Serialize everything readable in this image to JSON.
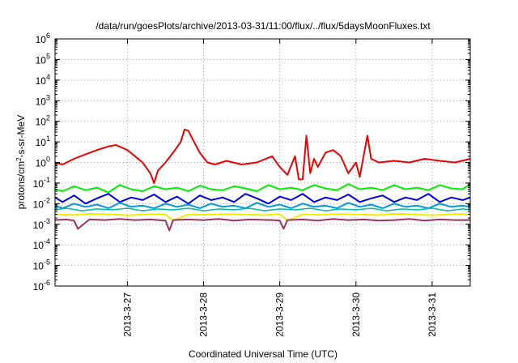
{
  "chart_data": {
    "type": "line",
    "title": "/data/run/goesPlots/archive/2013-03-31/11:00/flux/../flux/5daysMoonFluxes.txt",
    "xlabel": "Coordinated Universal Time (UTC)",
    "ylabel": "protons/cm²-s-sr-MeV",
    "ylabel_parts": {
      "pre": "protons/cm",
      "sup": "2",
      "post": "-s-sr-MeV"
    },
    "y_scale": "log",
    "ylim": [
      1e-06,
      1000000.0
    ],
    "y_ticks": [
      {
        "base": "10",
        "exp": "-6",
        "value": 1e-06
      },
      {
        "base": "10",
        "exp": "-5",
        "value": 1e-05
      },
      {
        "base": "10",
        "exp": "-4",
        "value": 0.0001
      },
      {
        "base": "10",
        "exp": "-3",
        "value": 0.001
      },
      {
        "base": "10",
        "exp": "-2",
        "value": 0.01
      },
      {
        "base": "10",
        "exp": "-1",
        "value": 0.1
      },
      {
        "base": "10",
        "exp": "0",
        "value": 1
      },
      {
        "base": "10",
        "exp": "1",
        "value": 10.0
      },
      {
        "base": "10",
        "exp": "2",
        "value": 100.0
      },
      {
        "base": "10",
        "exp": "3",
        "value": 1000.0
      },
      {
        "base": "10",
        "exp": "4",
        "value": 10000.0
      },
      {
        "base": "10",
        "exp": "5",
        "value": 100000.0
      },
      {
        "base": "10",
        "exp": "6",
        "value": 1000000.0
      }
    ],
    "x_range_days": [
      26.05,
      31.5
    ],
    "x_ticks": [
      {
        "label": "2013-3-27",
        "day": 27
      },
      {
        "label": "2013-3-28",
        "day": 28
      },
      {
        "label": "2013-3-29",
        "day": 29
      },
      {
        "label": "2013-3-30",
        "day": 30
      },
      {
        "label": "2013-3-31",
        "day": 31
      }
    ],
    "grid": true,
    "series": [
      {
        "color": "#00ee00",
        "width": 2,
        "x": [
          26.05,
          26.15,
          26.3,
          26.45,
          26.6,
          26.75,
          26.9,
          27.05,
          27.2,
          27.35,
          27.5,
          27.65,
          27.8,
          27.95,
          28.1,
          28.25,
          28.4,
          28.55,
          28.7,
          28.85,
          29.0,
          29.15,
          29.3,
          29.45,
          29.6,
          29.75,
          29.9,
          30.05,
          30.2,
          30.35,
          30.5,
          30.65,
          30.8,
          30.95,
          31.1,
          31.25,
          31.4,
          31.5
        ],
        "y": [
          0.05,
          0.04,
          0.07,
          0.045,
          0.06,
          0.035,
          0.08,
          0.05,
          0.04,
          0.07,
          0.05,
          0.06,
          0.04,
          0.075,
          0.05,
          0.045,
          0.07,
          0.055,
          0.04,
          0.08,
          0.05,
          0.06,
          0.045,
          0.08,
          0.055,
          0.045,
          0.09,
          0.05,
          0.06,
          0.045,
          0.08,
          0.05,
          0.06,
          0.045,
          0.08,
          0.055,
          0.05,
          0.09
        ]
      },
      {
        "color": "#0000ee",
        "width": 2,
        "x": [
          26.05,
          26.15,
          26.3,
          26.45,
          26.6,
          26.75,
          26.9,
          27.05,
          27.2,
          27.35,
          27.5,
          27.65,
          27.8,
          27.95,
          28.1,
          28.25,
          28.4,
          28.55,
          28.7,
          28.85,
          29.0,
          29.15,
          29.3,
          29.45,
          29.6,
          29.75,
          29.9,
          30.05,
          30.2,
          30.35,
          30.5,
          30.65,
          30.8,
          30.95,
          31.1,
          31.25,
          31.4,
          31.5
        ],
        "y": [
          0.02,
          0.012,
          0.025,
          0.01,
          0.018,
          0.03,
          0.012,
          0.02,
          0.015,
          0.028,
          0.012,
          0.022,
          0.01,
          0.025,
          0.015,
          0.02,
          0.012,
          0.03,
          0.018,
          0.01,
          0.022,
          0.015,
          0.03,
          0.012,
          0.02,
          0.015,
          0.028,
          0.012,
          0.018,
          0.025,
          0.012,
          0.02,
          0.015,
          0.03,
          0.012,
          0.02,
          0.015,
          0.02
        ]
      },
      {
        "color": "#0099dd",
        "width": 2,
        "x": [
          26.05,
          26.15,
          26.3,
          26.45,
          26.6,
          26.75,
          26.9,
          27.05,
          27.2,
          27.35,
          27.5,
          27.65,
          27.8,
          27.95,
          28.1,
          28.25,
          28.4,
          28.55,
          28.7,
          28.85,
          29.0,
          29.15,
          29.3,
          29.45,
          29.6,
          29.75,
          29.9,
          30.05,
          30.2,
          30.35,
          30.5,
          30.65,
          30.8,
          30.95,
          31.1,
          31.25,
          31.4,
          31.5
        ],
        "y": [
          0.008,
          0.006,
          0.01,
          0.007,
          0.009,
          0.006,
          0.011,
          0.007,
          0.008,
          0.006,
          0.01,
          0.007,
          0.009,
          0.006,
          0.01,
          0.007,
          0.008,
          0.006,
          0.011,
          0.007,
          0.009,
          0.006,
          0.01,
          0.007,
          0.008,
          0.006,
          0.011,
          0.007,
          0.009,
          0.006,
          0.01,
          0.007,
          0.008,
          0.006,
          0.01,
          0.007,
          0.008,
          0.007
        ]
      },
      {
        "color": "#00bbaa",
        "width": 1.5,
        "x": [
          26.05,
          26.2,
          26.4,
          26.6,
          26.8,
          27.0,
          27.2,
          27.4,
          27.6,
          27.8,
          28.0,
          28.2,
          28.4,
          28.6,
          28.8,
          29.0,
          29.2,
          29.4,
          29.6,
          29.8,
          30.0,
          30.2,
          30.4,
          30.6,
          30.8,
          31.0,
          31.2,
          31.4,
          31.5
        ],
        "y": [
          0.005,
          0.006,
          0.0045,
          0.0055,
          0.005,
          0.006,
          0.0045,
          0.0055,
          0.005,
          0.006,
          0.0045,
          0.0055,
          0.005,
          0.006,
          0.0045,
          0.0055,
          0.005,
          0.006,
          0.0045,
          0.0055,
          0.005,
          0.006,
          0.0045,
          0.0055,
          0.005,
          0.006,
          0.0045,
          0.0055,
          0.005
        ]
      },
      {
        "color": "#eeee00",
        "width": 2,
        "x": [
          26.05,
          26.3,
          26.5,
          26.8,
          27.0,
          27.3,
          27.5,
          27.6,
          27.8,
          28.0,
          28.3,
          28.5,
          28.8,
          29.0,
          29.1,
          29.3,
          29.5,
          29.8,
          30.0,
          30.3,
          30.5,
          30.8,
          31.0,
          31.3,
          31.5
        ],
        "y": [
          0.003,
          0.0028,
          0.0032,
          0.003,
          0.0027,
          0.0031,
          0.003,
          0.0015,
          0.003,
          0.0029,
          0.0031,
          0.003,
          0.0028,
          0.0031,
          0.0015,
          0.003,
          0.0029,
          0.0031,
          0.003,
          0.0028,
          0.0032,
          0.003,
          0.0027,
          0.0031,
          0.003
        ]
      },
      {
        "color": "#993366",
        "width": 2,
        "x": [
          26.05,
          26.2,
          26.3,
          26.35,
          26.5,
          26.7,
          26.9,
          27.1,
          27.3,
          27.5,
          27.55,
          27.6,
          27.8,
          28.0,
          28.2,
          28.4,
          28.6,
          28.9,
          29.0,
          29.05,
          29.1,
          29.3,
          29.5,
          29.7,
          29.9,
          30.1,
          30.3,
          30.5,
          30.7,
          30.9,
          31.1,
          31.3,
          31.5
        ],
        "y": [
          0.0016,
          0.0017,
          0.0015,
          0.0006,
          0.0017,
          0.0016,
          0.0018,
          0.0016,
          0.0017,
          0.0015,
          0.0005,
          0.0016,
          0.0017,
          0.0016,
          0.0018,
          0.0015,
          0.0017,
          0.0016,
          0.0015,
          0.0006,
          0.0016,
          0.0017,
          0.0015,
          0.0018,
          0.0016,
          0.0017,
          0.0015,
          0.0016,
          0.0018,
          0.0015,
          0.0017,
          0.0016,
          0.0016
        ]
      },
      {
        "color": "#ee0000",
        "width": 2,
        "x": [
          26.05,
          26.15,
          26.3,
          26.45,
          26.6,
          26.75,
          26.85,
          27.0,
          27.1,
          27.2,
          27.3,
          27.35,
          27.4,
          27.5,
          27.6,
          27.7,
          27.75,
          27.8,
          27.85,
          27.95,
          28.05,
          28.15,
          28.3,
          28.5,
          28.7,
          28.9,
          29.0,
          29.1,
          29.2,
          29.25,
          29.3,
          29.35,
          29.4,
          29.45,
          29.5,
          29.6,
          29.7,
          29.8,
          29.9,
          30.0,
          30.05,
          30.1,
          30.15,
          30.2,
          30.3,
          30.5,
          30.7,
          30.9,
          31.1,
          31.3,
          31.5
        ],
        "y": [
          1.0,
          0.8,
          1.5,
          2.5,
          4.0,
          6.0,
          7.0,
          4.0,
          2.0,
          1.0,
          0.3,
          0.1,
          0.4,
          1.0,
          3.0,
          10.0,
          40.0,
          35.0,
          15.0,
          3.0,
          1.0,
          0.8,
          1.2,
          0.8,
          1.0,
          2.0,
          0.6,
          0.25,
          2.0,
          0.15,
          0.15,
          20.0,
          0.3,
          1.5,
          0.6,
          3.0,
          4.0,
          2.0,
          0.3,
          1.0,
          0.2,
          2.0,
          20.0,
          1.5,
          1.0,
          1.2,
          1.0,
          1.5,
          1.2,
          1.0,
          1.5
        ]
      }
    ]
  }
}
